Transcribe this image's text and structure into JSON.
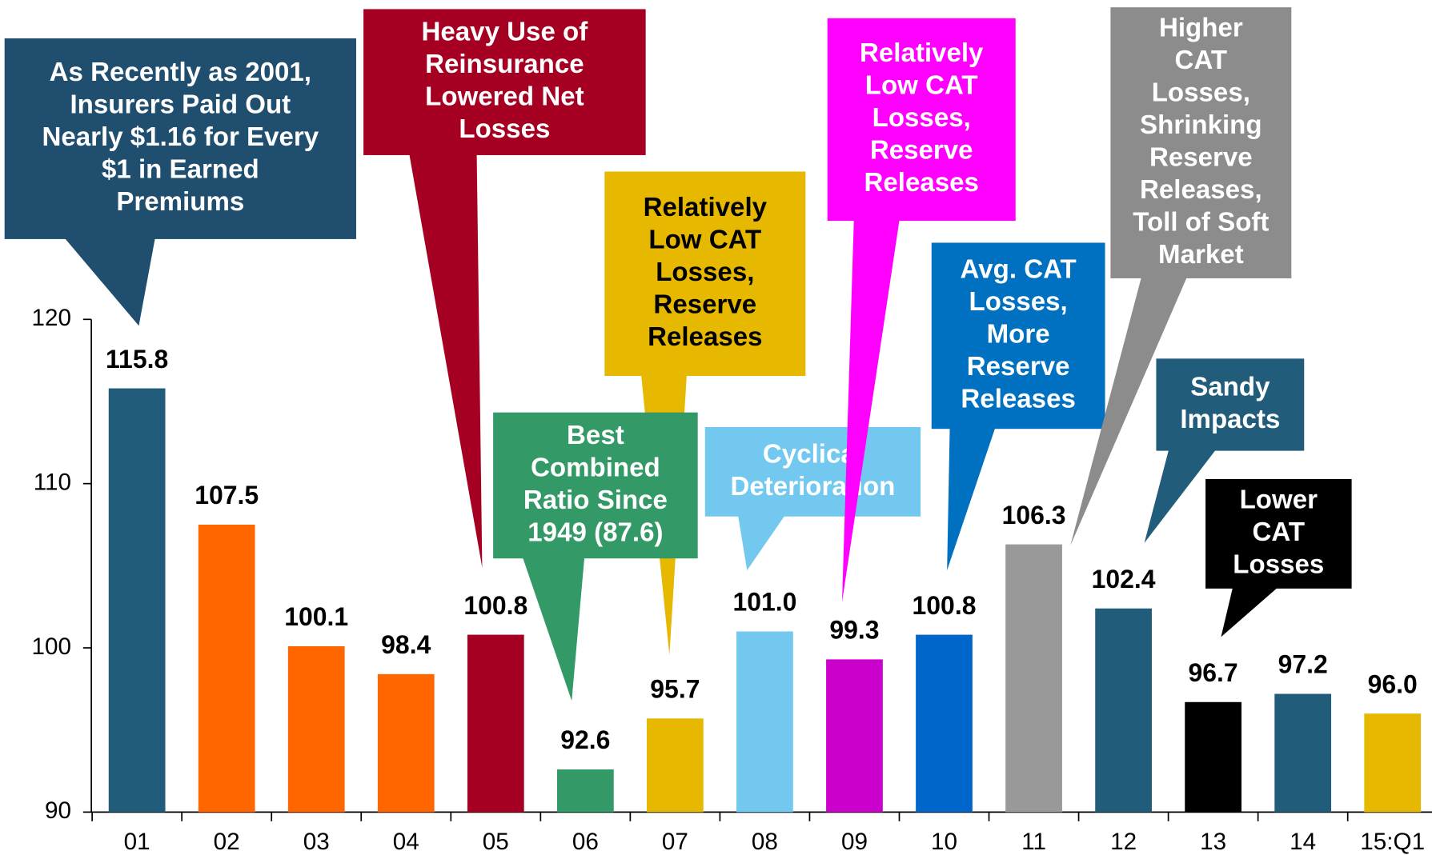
{
  "chart_data": {
    "type": "bar",
    "categories": [
      "01",
      "02",
      "03",
      "04",
      "05",
      "06",
      "07",
      "08",
      "09",
      "10",
      "11",
      "12",
      "13",
      "14",
      "15:Q1"
    ],
    "values": [
      115.8,
      107.5,
      100.1,
      98.4,
      100.8,
      92.6,
      95.7,
      101.0,
      99.3,
      100.8,
      106.3,
      102.4,
      96.7,
      97.2,
      96.0
    ],
    "value_labels": [
      "115.8",
      "107.5",
      "100.1",
      "98.4",
      "100.8",
      "92.6",
      "95.7",
      "101.0",
      "99.3",
      "100.8",
      "106.3",
      "102.4",
      "96.7",
      "97.2",
      "96.0"
    ],
    "colors": [
      "#215d7a",
      "#ff6600",
      "#ff6600",
      "#ff6600",
      "#a50021",
      "#339966",
      "#e6b800",
      "#72c8ee",
      "#cc00cc",
      "#0066cc",
      "#999999",
      "#215d7a",
      "#000000",
      "#215d7a",
      "#e6b800"
    ],
    "ylim": [
      90,
      120
    ],
    "yticks": [
      90,
      100,
      110,
      120
    ],
    "annotations": [
      {
        "lines": [
          "As Recently as 2001,",
          "Insurers Paid Out",
          "Nearly $1.16 for Every",
          "$1 in Earned",
          "Premiums"
        ],
        "color": "#1f4e6e",
        "text_color": "#ffffff"
      },
      {
        "lines": [
          "Heavy Use of",
          "Reinsurance",
          "Lowered Net",
          "Losses"
        ],
        "color": "#a50021",
        "text_color": "#ffffff"
      },
      {
        "lines": [
          "Relatively",
          "Low CAT",
          "Losses,",
          "Reserve",
          "Releases"
        ],
        "color": "#e6b800",
        "text_color": "#000000"
      },
      {
        "lines": [
          "Best",
          "Combined",
          "Ratio Since",
          "1949 (87.6)"
        ],
        "color": "#339966",
        "text_color": "#ffffff"
      },
      {
        "lines": [
          "Cyclical",
          "Deterioration"
        ],
        "color": "#72c8ee",
        "text_color": "#ffffff"
      },
      {
        "lines": [
          "Relatively",
          "Low CAT",
          "Losses,",
          "Reserve",
          "Releases"
        ],
        "color": "#ff00ff",
        "text_color": "#ffffff"
      },
      {
        "lines": [
          "Avg. CAT",
          "Losses,",
          "More",
          "Reserve",
          "Releases"
        ],
        "color": "#0070c0",
        "text_color": "#ffffff"
      },
      {
        "lines": [
          "Higher",
          "CAT",
          "Losses,",
          "Shrinking",
          "Reserve",
          "Releases,",
          "Toll of Soft",
          "Market"
        ],
        "color": "#8c8c8c",
        "text_color": "#ffffff"
      },
      {
        "lines": [
          "Sandy",
          "Impacts"
        ],
        "color": "#215d7a",
        "text_color": "#ffffff"
      },
      {
        "lines": [
          "Lower",
          "CAT",
          "Losses"
        ],
        "color": "#000000",
        "text_color": "#ffffff"
      }
    ]
  }
}
